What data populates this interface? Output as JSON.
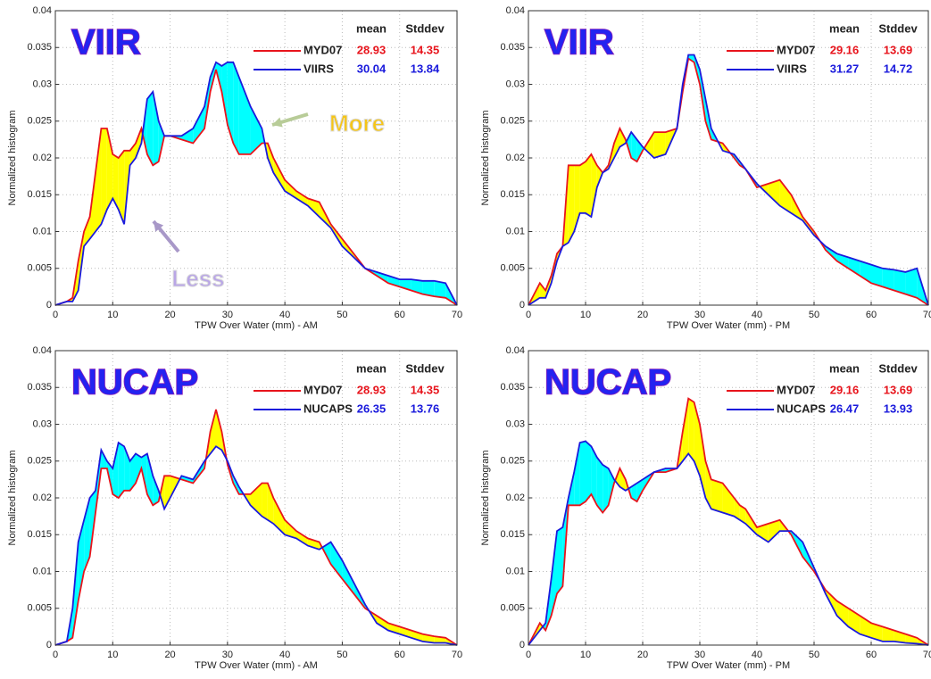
{
  "chart_data": [
    {
      "type": "line",
      "title": "VIIR",
      "xlabel": "TPW Over Water (mm) - AM",
      "ylabel": "Normalized histogram",
      "stats_header": [
        "mean",
        "Stddev"
      ],
      "annotations": [
        "More",
        "Less"
      ],
      "x": [
        0,
        2,
        3,
        4,
        5,
        6,
        7,
        8,
        9,
        10,
        11,
        12,
        13,
        14,
        15,
        16,
        17,
        18,
        19,
        20,
        22,
        24,
        26,
        27,
        28,
        29,
        30,
        31,
        32,
        34,
        36,
        37,
        38,
        40,
        42,
        44,
        46,
        48,
        50,
        52,
        54,
        56,
        58,
        60,
        62,
        64,
        66,
        68,
        70
      ],
      "series": [
        {
          "name": "MYD07",
          "color": "#e8141c",
          "mean": 28.93,
          "stddev": 14.35,
          "values": [
            0,
            0.0005,
            0.001,
            0.006,
            0.01,
            0.012,
            0.018,
            0.024,
            0.024,
            0.0205,
            0.02,
            0.021,
            0.021,
            0.022,
            0.024,
            0.0205,
            0.019,
            0.0195,
            0.023,
            0.023,
            0.0225,
            0.022,
            0.024,
            0.029,
            0.032,
            0.029,
            0.0245,
            0.022,
            0.0205,
            0.0205,
            0.022,
            0.022,
            0.02,
            0.017,
            0.0155,
            0.0145,
            0.014,
            0.011,
            0.009,
            0.007,
            0.005,
            0.004,
            0.003,
            0.0025,
            0.002,
            0.0015,
            0.0012,
            0.001,
            0
          ]
        },
        {
          "name": "VIIRS",
          "color": "#1a1adc",
          "mean": 30.04,
          "stddev": 13.84,
          "values": [
            0,
            0.0005,
            0.0005,
            0.002,
            0.008,
            0.009,
            0.01,
            0.011,
            0.013,
            0.0145,
            0.013,
            0.011,
            0.019,
            0.02,
            0.022,
            0.028,
            0.029,
            0.025,
            0.023,
            0.023,
            0.023,
            0.024,
            0.027,
            0.031,
            0.033,
            0.0325,
            0.033,
            0.033,
            0.031,
            0.027,
            0.024,
            0.02,
            0.018,
            0.0155,
            0.0145,
            0.0135,
            0.012,
            0.0105,
            0.008,
            0.0065,
            0.005,
            0.0045,
            0.004,
            0.0035,
            0.0035,
            0.0033,
            0.0033,
            0.003,
            0
          ]
        }
      ],
      "xlim": [
        0,
        70
      ],
      "xticks": [
        0,
        10,
        20,
        30,
        40,
        50,
        60,
        70
      ],
      "ylim": [
        0,
        0.04
      ],
      "yticks": [
        0,
        0.005,
        0.01,
        0.015,
        0.02,
        0.025,
        0.03,
        0.035,
        0.04
      ],
      "grid": true,
      "fill_colors": [
        "#ffff00",
        "#00ffff"
      ]
    },
    {
      "type": "line",
      "title": "VIIR",
      "xlabel": "TPW Over Water (mm) - PM",
      "ylabel": "Normalized histogram",
      "stats_header": [
        "mean",
        "Stddev"
      ],
      "x": [
        0,
        2,
        3,
        4,
        5,
        6,
        7,
        8,
        9,
        10,
        11,
        12,
        13,
        14,
        15,
        16,
        17,
        18,
        19,
        20,
        22,
        24,
        26,
        27,
        28,
        29,
        30,
        31,
        32,
        34,
        36,
        37,
        38,
        40,
        42,
        44,
        46,
        48,
        50,
        52,
        54,
        56,
        58,
        60,
        62,
        64,
        66,
        68,
        70
      ],
      "series": [
        {
          "name": "MYD07",
          "color": "#e8141c",
          "mean": 29.16,
          "stddev": 13.69,
          "values": [
            0,
            0.003,
            0.002,
            0.004,
            0.007,
            0.008,
            0.019,
            0.019,
            0.019,
            0.0195,
            0.0205,
            0.019,
            0.018,
            0.019,
            0.022,
            0.024,
            0.0225,
            0.02,
            0.0195,
            0.021,
            0.0235,
            0.0235,
            0.024,
            0.029,
            0.0335,
            0.033,
            0.03,
            0.025,
            0.0225,
            0.022,
            0.02,
            0.019,
            0.0185,
            0.016,
            0.0165,
            0.017,
            0.015,
            0.012,
            0.01,
            0.0075,
            0.006,
            0.005,
            0.004,
            0.003,
            0.0025,
            0.002,
            0.0015,
            0.001,
            0
          ]
        },
        {
          "name": "VIIRS",
          "color": "#1a1adc",
          "mean": 31.27,
          "stddev": 14.72,
          "values": [
            0,
            0.001,
            0.001,
            0.003,
            0.006,
            0.008,
            0.0085,
            0.01,
            0.0125,
            0.0125,
            0.012,
            0.016,
            0.018,
            0.0185,
            0.02,
            0.0215,
            0.022,
            0.0235,
            0.0225,
            0.0215,
            0.02,
            0.0205,
            0.024,
            0.03,
            0.034,
            0.034,
            0.032,
            0.028,
            0.024,
            0.021,
            0.0205,
            0.0195,
            0.0185,
            0.0165,
            0.015,
            0.0135,
            0.0125,
            0.0115,
            0.0095,
            0.008,
            0.007,
            0.0065,
            0.006,
            0.0055,
            0.005,
            0.0048,
            0.0045,
            0.005,
            0
          ]
        }
      ],
      "xlim": [
        0,
        70
      ],
      "xticks": [
        0,
        10,
        20,
        30,
        40,
        50,
        60,
        70
      ],
      "ylim": [
        0,
        0.04
      ],
      "yticks": [
        0,
        0.005,
        0.01,
        0.015,
        0.02,
        0.025,
        0.03,
        0.035,
        0.04
      ],
      "grid": true,
      "fill_colors": [
        "#ffff00",
        "#00ffff"
      ]
    },
    {
      "type": "line",
      "title": "NUCAP",
      "xlabel": "TPW Over Water (mm) - AM",
      "ylabel": "Normalized histogram",
      "stats_header": [
        "mean",
        "Stddev"
      ],
      "x": [
        0,
        2,
        3,
        4,
        5,
        6,
        7,
        8,
        9,
        10,
        11,
        12,
        13,
        14,
        15,
        16,
        17,
        18,
        19,
        20,
        22,
        24,
        26,
        27,
        28,
        29,
        30,
        31,
        32,
        34,
        36,
        37,
        38,
        40,
        42,
        44,
        46,
        48,
        50,
        52,
        54,
        56,
        58,
        60,
        62,
        64,
        66,
        68,
        70
      ],
      "series": [
        {
          "name": "MYD07",
          "color": "#e8141c",
          "mean": 28.93,
          "stddev": 14.35,
          "values": [
            0,
            0.0005,
            0.001,
            0.006,
            0.01,
            0.012,
            0.018,
            0.024,
            0.024,
            0.0205,
            0.02,
            0.021,
            0.021,
            0.022,
            0.024,
            0.0205,
            0.019,
            0.0195,
            0.023,
            0.023,
            0.0225,
            0.022,
            0.024,
            0.029,
            0.032,
            0.029,
            0.0245,
            0.022,
            0.0205,
            0.0205,
            0.022,
            0.022,
            0.02,
            0.017,
            0.0155,
            0.0145,
            0.014,
            0.011,
            0.009,
            0.007,
            0.005,
            0.004,
            0.003,
            0.0025,
            0.002,
            0.0015,
            0.0012,
            0.001,
            0
          ]
        },
        {
          "name": "NUCAPS",
          "color": "#1a1adc",
          "mean": 26.35,
          "stddev": 13.76,
          "values": [
            0,
            0.0005,
            0.005,
            0.014,
            0.017,
            0.02,
            0.021,
            0.0265,
            0.025,
            0.024,
            0.0275,
            0.027,
            0.025,
            0.026,
            0.0255,
            0.026,
            0.023,
            0.021,
            0.0185,
            0.02,
            0.023,
            0.0225,
            0.025,
            0.026,
            0.027,
            0.0265,
            0.025,
            0.023,
            0.0215,
            0.019,
            0.0175,
            0.017,
            0.0165,
            0.015,
            0.0145,
            0.0135,
            0.013,
            0.014,
            0.0115,
            0.0085,
            0.0055,
            0.003,
            0.002,
            0.0015,
            0.001,
            0.0005,
            0.0003,
            0.0003,
            0
          ]
        }
      ],
      "xlim": [
        0,
        70
      ],
      "xticks": [
        0,
        10,
        20,
        30,
        40,
        50,
        60,
        70
      ],
      "ylim": [
        0,
        0.04
      ],
      "yticks": [
        0,
        0.005,
        0.01,
        0.015,
        0.02,
        0.025,
        0.03,
        0.035,
        0.04
      ],
      "grid": true,
      "fill_colors": [
        "#ffff00",
        "#00ffff"
      ]
    },
    {
      "type": "line",
      "title": "NUCAP",
      "xlabel": "TPW Over Water (mm) - PM",
      "ylabel": "Normalized histogram",
      "stats_header": [
        "mean",
        "Stddev"
      ],
      "x": [
        0,
        2,
        3,
        4,
        5,
        6,
        7,
        8,
        9,
        10,
        11,
        12,
        13,
        14,
        15,
        16,
        17,
        18,
        19,
        20,
        22,
        24,
        26,
        27,
        28,
        29,
        30,
        31,
        32,
        34,
        36,
        37,
        38,
        40,
        42,
        44,
        46,
        48,
        50,
        52,
        54,
        56,
        58,
        60,
        62,
        64,
        66,
        68,
        70
      ],
      "series": [
        {
          "name": "MYD07",
          "color": "#e8141c",
          "mean": 29.16,
          "stddev": 13.69,
          "values": [
            0,
            0.003,
            0.002,
            0.004,
            0.007,
            0.008,
            0.019,
            0.019,
            0.019,
            0.0195,
            0.0205,
            0.019,
            0.018,
            0.019,
            0.022,
            0.024,
            0.0225,
            0.02,
            0.0195,
            0.021,
            0.0235,
            0.0235,
            0.024,
            0.029,
            0.0335,
            0.033,
            0.03,
            0.025,
            0.0225,
            0.022,
            0.02,
            0.019,
            0.0185,
            0.016,
            0.0165,
            0.017,
            0.015,
            0.012,
            0.01,
            0.0075,
            0.006,
            0.005,
            0.004,
            0.003,
            0.0025,
            0.002,
            0.0015,
            0.001,
            0
          ]
        },
        {
          "name": "NUCAPS",
          "color": "#1a1adc",
          "mean": 26.47,
          "stddev": 13.93,
          "values": [
            0,
            0.002,
            0.003,
            0.009,
            0.0155,
            0.016,
            0.02,
            0.0235,
            0.0275,
            0.0277,
            0.027,
            0.0255,
            0.0245,
            0.024,
            0.0225,
            0.0215,
            0.021,
            0.0215,
            0.022,
            0.0225,
            0.0235,
            0.024,
            0.024,
            0.025,
            0.026,
            0.025,
            0.023,
            0.02,
            0.0185,
            0.018,
            0.0175,
            0.017,
            0.0165,
            0.015,
            0.014,
            0.0155,
            0.0155,
            0.014,
            0.0105,
            0.007,
            0.004,
            0.0025,
            0.0015,
            0.001,
            0.0005,
            0.0005,
            0.0003,
            0.0002,
            0
          ]
        }
      ],
      "xlim": [
        0,
        70
      ],
      "xticks": [
        0,
        10,
        20,
        30,
        40,
        50,
        60,
        70
      ],
      "ylim": [
        0,
        0.04
      ],
      "yticks": [
        0,
        0.005,
        0.01,
        0.015,
        0.02,
        0.025,
        0.03,
        0.035,
        0.04
      ],
      "grid": true,
      "fill_colors": [
        "#ffff00",
        "#00ffff"
      ]
    }
  ]
}
